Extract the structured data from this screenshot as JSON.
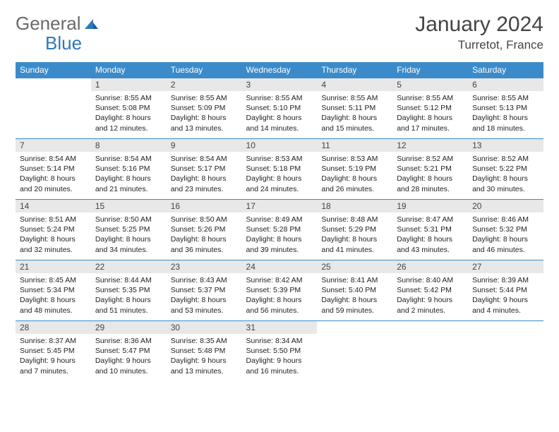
{
  "brand": {
    "part1": "General",
    "part2": "Blue"
  },
  "title": "January 2024",
  "location": "Turretot, France",
  "colors": {
    "header_bg": "#3b8bca",
    "header_fg": "#ffffff",
    "daynum_bg": "#e8e8e8",
    "border": "#3b8bca",
    "text": "#222222",
    "brand_gray": "#6a6a6a",
    "brand_blue": "#2f78bd"
  },
  "weekdays": [
    "Sunday",
    "Monday",
    "Tuesday",
    "Wednesday",
    "Thursday",
    "Friday",
    "Saturday"
  ],
  "weeks": [
    [
      null,
      {
        "n": "1",
        "sr": "8:55 AM",
        "ss": "5:08 PM",
        "dl": "8 hours and 12 minutes."
      },
      {
        "n": "2",
        "sr": "8:55 AM",
        "ss": "5:09 PM",
        "dl": "8 hours and 13 minutes."
      },
      {
        "n": "3",
        "sr": "8:55 AM",
        "ss": "5:10 PM",
        "dl": "8 hours and 14 minutes."
      },
      {
        "n": "4",
        "sr": "8:55 AM",
        "ss": "5:11 PM",
        "dl": "8 hours and 15 minutes."
      },
      {
        "n": "5",
        "sr": "8:55 AM",
        "ss": "5:12 PM",
        "dl": "8 hours and 17 minutes."
      },
      {
        "n": "6",
        "sr": "8:55 AM",
        "ss": "5:13 PM",
        "dl": "8 hours and 18 minutes."
      }
    ],
    [
      {
        "n": "7",
        "sr": "8:54 AM",
        "ss": "5:14 PM",
        "dl": "8 hours and 20 minutes."
      },
      {
        "n": "8",
        "sr": "8:54 AM",
        "ss": "5:16 PM",
        "dl": "8 hours and 21 minutes."
      },
      {
        "n": "9",
        "sr": "8:54 AM",
        "ss": "5:17 PM",
        "dl": "8 hours and 23 minutes."
      },
      {
        "n": "10",
        "sr": "8:53 AM",
        "ss": "5:18 PM",
        "dl": "8 hours and 24 minutes."
      },
      {
        "n": "11",
        "sr": "8:53 AM",
        "ss": "5:19 PM",
        "dl": "8 hours and 26 minutes."
      },
      {
        "n": "12",
        "sr": "8:52 AM",
        "ss": "5:21 PM",
        "dl": "8 hours and 28 minutes."
      },
      {
        "n": "13",
        "sr": "8:52 AM",
        "ss": "5:22 PM",
        "dl": "8 hours and 30 minutes."
      }
    ],
    [
      {
        "n": "14",
        "sr": "8:51 AM",
        "ss": "5:24 PM",
        "dl": "8 hours and 32 minutes."
      },
      {
        "n": "15",
        "sr": "8:50 AM",
        "ss": "5:25 PM",
        "dl": "8 hours and 34 minutes."
      },
      {
        "n": "16",
        "sr": "8:50 AM",
        "ss": "5:26 PM",
        "dl": "8 hours and 36 minutes."
      },
      {
        "n": "17",
        "sr": "8:49 AM",
        "ss": "5:28 PM",
        "dl": "8 hours and 39 minutes."
      },
      {
        "n": "18",
        "sr": "8:48 AM",
        "ss": "5:29 PM",
        "dl": "8 hours and 41 minutes."
      },
      {
        "n": "19",
        "sr": "8:47 AM",
        "ss": "5:31 PM",
        "dl": "8 hours and 43 minutes."
      },
      {
        "n": "20",
        "sr": "8:46 AM",
        "ss": "5:32 PM",
        "dl": "8 hours and 46 minutes."
      }
    ],
    [
      {
        "n": "21",
        "sr": "8:45 AM",
        "ss": "5:34 PM",
        "dl": "8 hours and 48 minutes."
      },
      {
        "n": "22",
        "sr": "8:44 AM",
        "ss": "5:35 PM",
        "dl": "8 hours and 51 minutes."
      },
      {
        "n": "23",
        "sr": "8:43 AM",
        "ss": "5:37 PM",
        "dl": "8 hours and 53 minutes."
      },
      {
        "n": "24",
        "sr": "8:42 AM",
        "ss": "5:39 PM",
        "dl": "8 hours and 56 minutes."
      },
      {
        "n": "25",
        "sr": "8:41 AM",
        "ss": "5:40 PM",
        "dl": "8 hours and 59 minutes."
      },
      {
        "n": "26",
        "sr": "8:40 AM",
        "ss": "5:42 PM",
        "dl": "9 hours and 2 minutes."
      },
      {
        "n": "27",
        "sr": "8:39 AM",
        "ss": "5:44 PM",
        "dl": "9 hours and 4 minutes."
      }
    ],
    [
      {
        "n": "28",
        "sr": "8:37 AM",
        "ss": "5:45 PM",
        "dl": "9 hours and 7 minutes."
      },
      {
        "n": "29",
        "sr": "8:36 AM",
        "ss": "5:47 PM",
        "dl": "9 hours and 10 minutes."
      },
      {
        "n": "30",
        "sr": "8:35 AM",
        "ss": "5:48 PM",
        "dl": "9 hours and 13 minutes."
      },
      {
        "n": "31",
        "sr": "8:34 AM",
        "ss": "5:50 PM",
        "dl": "9 hours and 16 minutes."
      },
      null,
      null,
      null
    ]
  ],
  "labels": {
    "sunrise": "Sunrise:",
    "sunset": "Sunset:",
    "daylight": "Daylight:"
  }
}
